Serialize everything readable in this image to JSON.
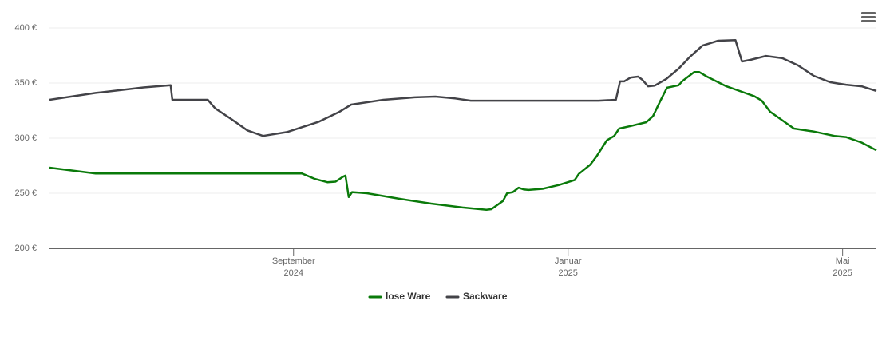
{
  "chart_data": {
    "type": "line",
    "xlim": [
      2024.371,
      2025.374
    ],
    "xticks": [
      {
        "value": 2024.667,
        "label": "September",
        "year": "2024"
      },
      {
        "value": 2025,
        "label": "Januar",
        "year": "2025"
      },
      {
        "value": 2025.333,
        "label": "Mai",
        "year": "2025"
      }
    ],
    "ylim": [
      200,
      400
    ],
    "yticks": [
      {
        "value": 200,
        "label": "200 €"
      },
      {
        "value": 250,
        "label": "250 €"
      },
      {
        "value": 300,
        "label": "300 €"
      },
      {
        "value": 350,
        "label": "350 €"
      },
      {
        "value": 400,
        "label": "400 €"
      }
    ],
    "grid": true,
    "legend": "bottom",
    "series": [
      {
        "name": "lose Ware",
        "color": "#0a7a0a",
        "x": [
          2024.371,
          2024.427,
          2024.677,
          2024.693,
          2024.708,
          2024.718,
          2024.727,
          2024.73,
          2024.734,
          2024.738,
          2024.756,
          2024.795,
          2024.834,
          2024.872,
          2024.901,
          2024.907,
          2024.921,
          2024.926,
          2024.933,
          2024.94,
          2024.946,
          2024.952,
          2024.969,
          2024.989,
          2025.008,
          2025.013,
          2025.027,
          2025.035,
          2025.047,
          2025.056,
          2025.062,
          2025.076,
          2025.095,
          2025.103,
          2025.112,
          2025.12,
          2025.134,
          2025.139,
          2025.153,
          2025.159,
          2025.168,
          2025.192,
          2025.211,
          2025.226,
          2025.235,
          2025.245,
          2025.274,
          2025.298,
          2025.323,
          2025.337,
          2025.356,
          2025.374
        ],
        "values": [
          273.2,
          268,
          268,
          263,
          260,
          260.5,
          265,
          266,
          246.5,
          251,
          250,
          245,
          240.6,
          237,
          235,
          235.5,
          243,
          250,
          251,
          255,
          253.5,
          253,
          254,
          257.5,
          262,
          267.5,
          276,
          284,
          298,
          302,
          308.7,
          311,
          314.5,
          320,
          334,
          345.7,
          348,
          352,
          360,
          360,
          356,
          347,
          342,
          338,
          334,
          324,
          308.7,
          306,
          302,
          301,
          296,
          289
        ]
      },
      {
        "name": "Sackware",
        "color": "#434348",
        "x": [
          2024.371,
          2024.427,
          2024.485,
          2024.518,
          2024.52,
          2024.563,
          2024.572,
          2024.592,
          2024.611,
          2024.63,
          2024.659,
          2024.698,
          2024.722,
          2024.737,
          2024.776,
          2024.814,
          2024.839,
          2024.863,
          2024.882,
          2024.911,
          2024.989,
          2025.037,
          2025.058,
          2025.063,
          2025.068,
          2025.076,
          2025.085,
          2025.09,
          2025.097,
          2025.105,
          2025.119,
          2025.134,
          2025.148,
          2025.163,
          2025.182,
          2025.203,
          2025.211,
          2025.221,
          2025.24,
          2025.26,
          2025.279,
          2025.298,
          2025.318,
          2025.337,
          2025.356,
          2025.374
        ],
        "values": [
          334.8,
          341,
          346,
          348,
          334.8,
          334.8,
          327,
          317,
          307,
          302,
          305.5,
          315,
          323.6,
          330.4,
          334.8,
          337,
          337.7,
          336,
          334,
          334,
          334,
          334,
          334.8,
          351.5,
          351.5,
          355,
          355.8,
          353,
          347,
          347.6,
          353.6,
          363,
          374,
          384,
          388.4,
          389,
          369.6,
          371,
          374.6,
          372.5,
          366,
          356.5,
          350.7,
          348.5,
          347,
          342.8
        ]
      }
    ]
  }
}
